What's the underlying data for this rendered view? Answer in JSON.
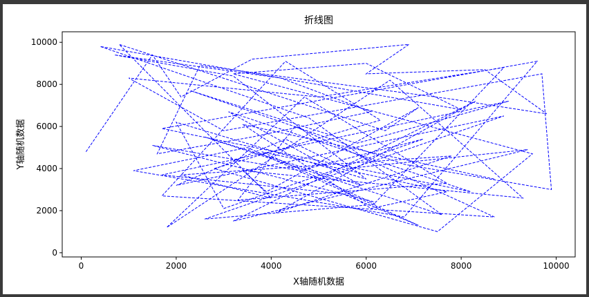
{
  "chart_data": {
    "type": "line",
    "title": "折线图",
    "xlabel": "X轴随机数据",
    "ylabel": "Y轴随机数据",
    "xlim": [
      -400,
      10400
    ],
    "ylim": [
      -200,
      10500
    ],
    "xticks": [
      0,
      2000,
      4000,
      6000,
      8000,
      10000
    ],
    "yticks": [
      0,
      2000,
      4000,
      6000,
      8000,
      10000
    ],
    "line_style": "dashed",
    "line_color": "#0000ff",
    "series": [
      {
        "x": [
          100,
          1500,
          2100,
          3600,
          6900,
          6000,
          8500,
          9800,
          7800,
          4800,
          2500,
          1600,
          3600,
          6100,
          4200,
          700,
          3200,
          6000,
          2000,
          3000,
          7200,
          4600,
          1500,
          6200,
          8900,
          5000,
          3200,
          1000,
          3000,
          9700,
          9900,
          6800,
          2300,
          5800,
          9000,
          1700,
          5500,
          7100,
          3500,
          1100,
          6800,
          9600,
          1700,
          8200,
          3100,
          5900,
          2600,
          7600,
          4800,
          400,
          8000,
          6000,
          3200,
          9500,
          7500,
          2800,
          6300,
          4300,
          1700,
          8700,
          4500,
          3300,
          7700,
          4700,
          1800,
          6500,
          9300,
          3400,
          3900,
          7100,
          6400,
          800,
          4000,
          2100,
          7800,
          4100,
          8300,
          3200,
          9400,
          5600,
          4300,
          2000,
          8900,
          2600,
          6200,
          3800,
          7700,
          6100,
          3400,
          8700
        ],
        "y": [
          4800,
          9400,
          7400,
          9200,
          9900,
          8500,
          8700,
          6600,
          7300,
          8200,
          8900,
          4700,
          5500,
          6700,
          8300,
          9400,
          8400,
          3500,
          6200,
          2100,
          5400,
          3900,
          5100,
          2400,
          8800,
          7400,
          7800,
          8300,
          5800,
          8500,
          3000,
          4200,
          7700,
          5200,
          7200,
          3700,
          2800,
          1300,
          5000,
          3900,
          1700,
          9100,
          5900,
          2900,
          6700,
          3200,
          5500,
          1800,
          6400,
          9800,
          6800,
          9000,
          8500,
          4700,
          1000,
          4000,
          6300,
          9100,
          2700,
          1700,
          6000,
          2500,
          3300,
          7400,
          1200,
          8200,
          2600,
          3900,
          2900,
          6900,
          5800,
          9900,
          2600,
          3700,
          4600,
          1900,
          7200,
          1500,
          4900,
          4000,
          5400,
          3200,
          6500,
          1600,
          2300,
          4800,
          2900,
          2100,
          6100,
          3500
        ]
      }
    ]
  }
}
